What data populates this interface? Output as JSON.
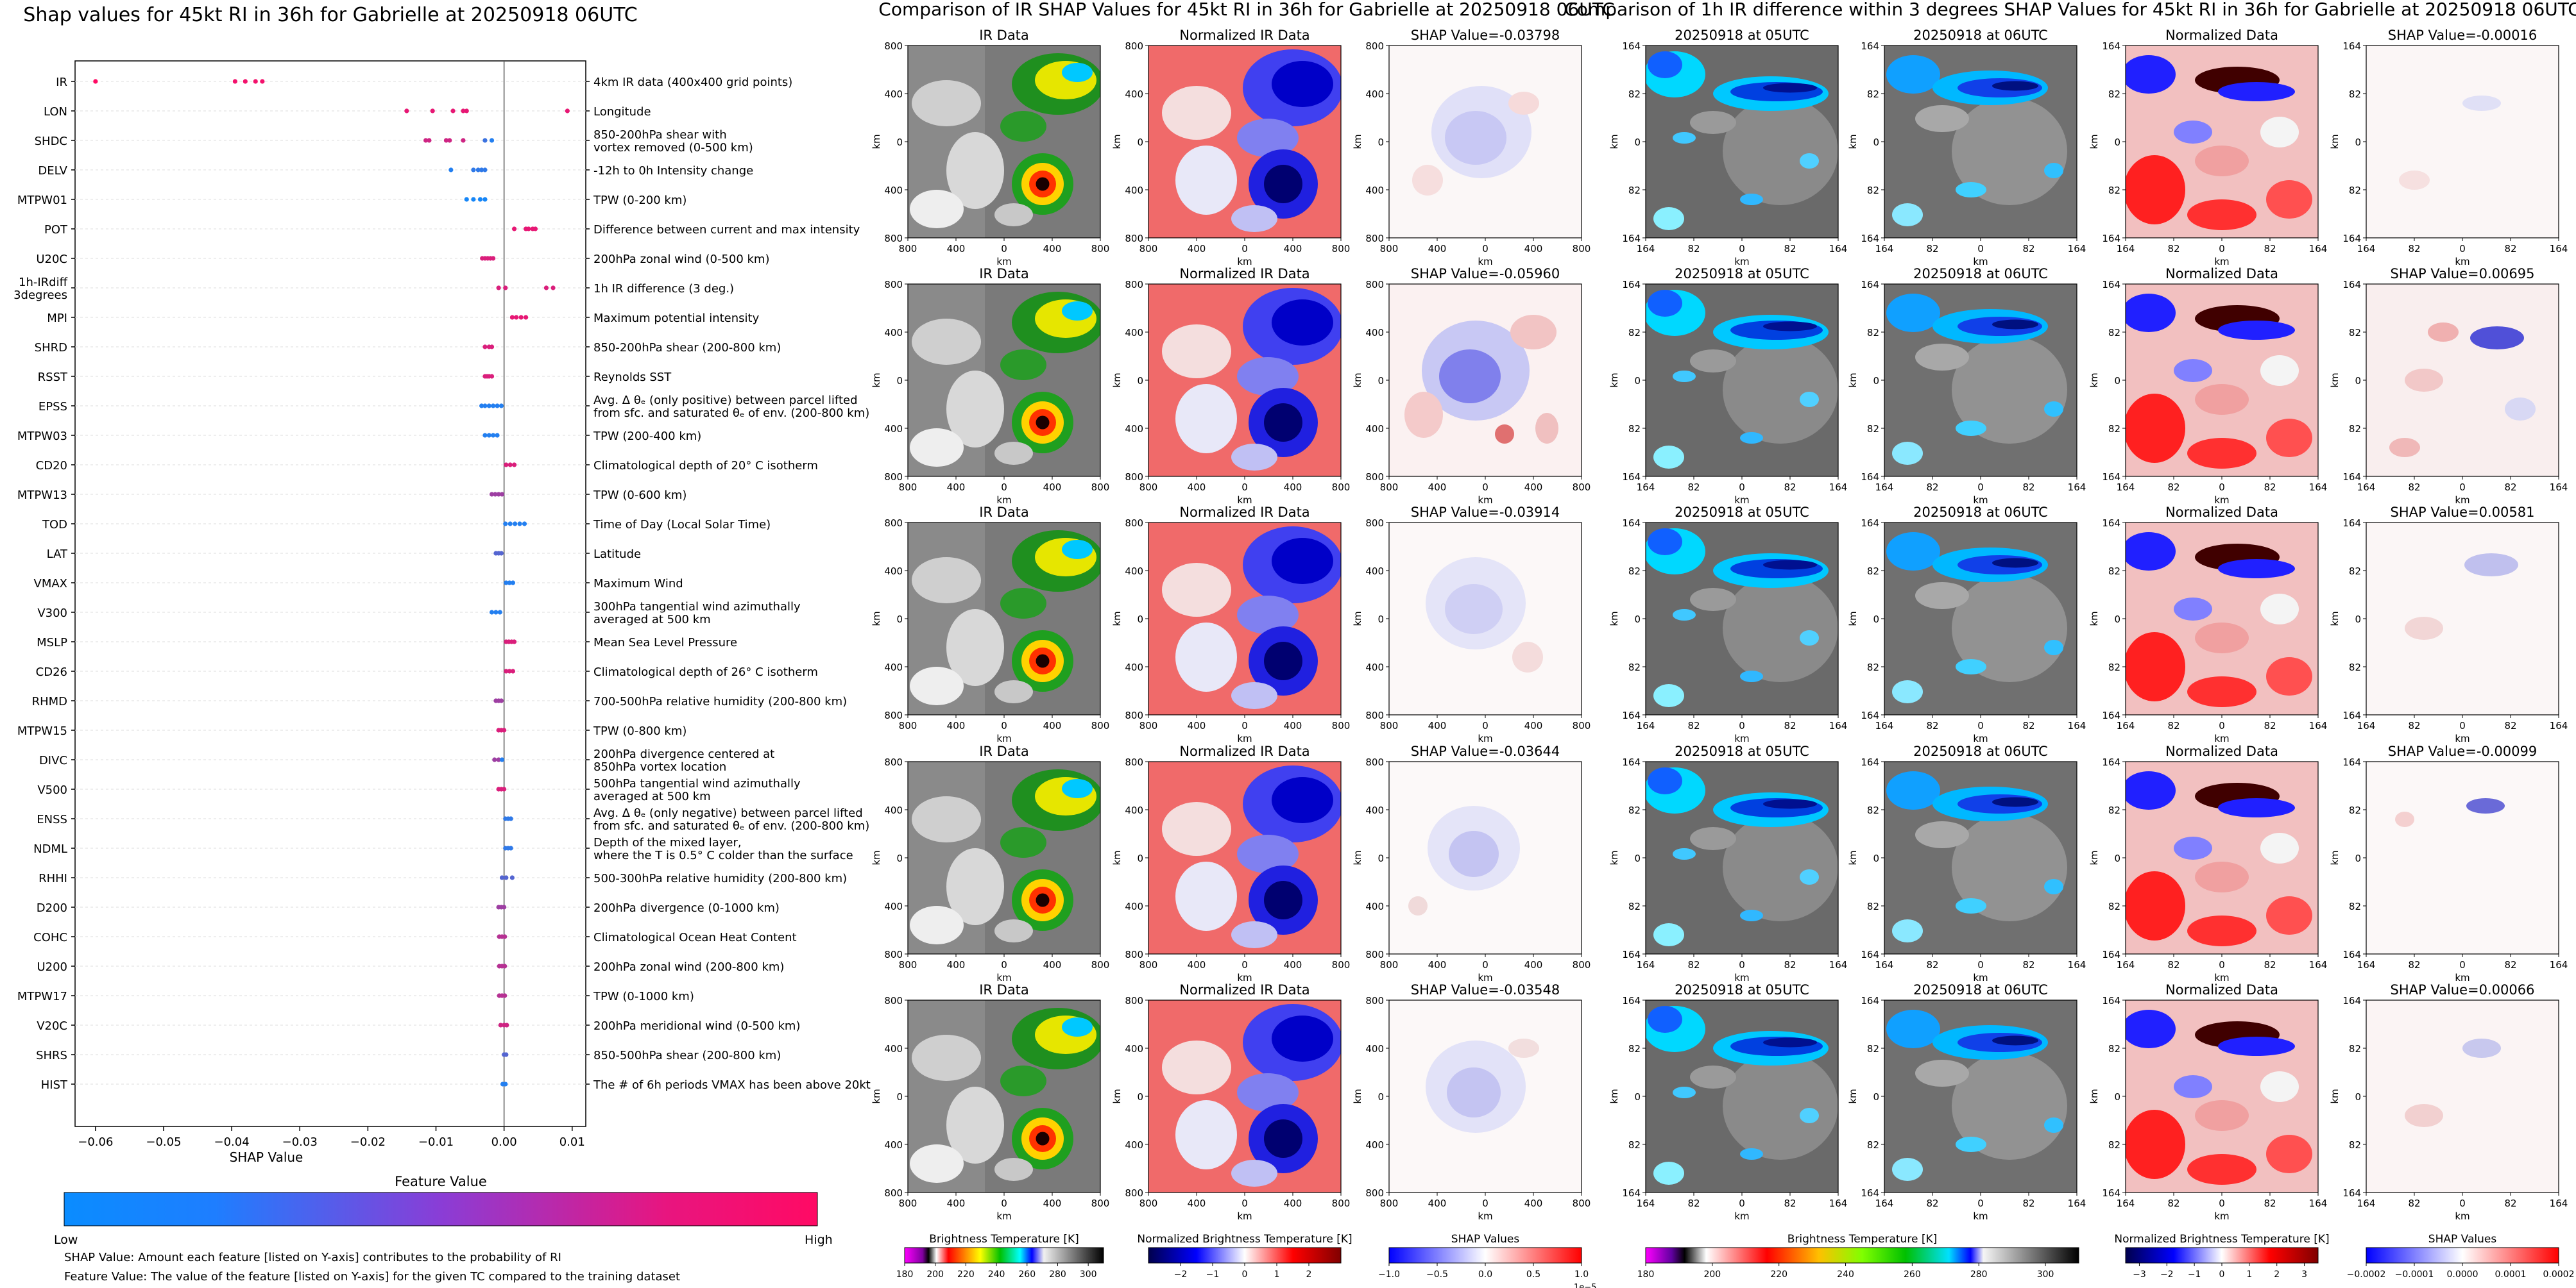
{
  "chart_data": [
    {
      "type": "scatter",
      "title": "Shap values for 45kt RI in 36h for Gabrielle at 20250918 06UTC",
      "xlabel": "SHAP Value",
      "xlim": [
        -0.063,
        0.012
      ],
      "xticks": [
        -0.06,
        -0.05,
        -0.04,
        -0.03,
        -0.02,
        -0.01,
        0.0,
        0.01
      ],
      "xtick_labels": [
        "−0.06",
        "−0.05",
        "−0.04",
        "−0.03",
        "−0.02",
        "−0.01",
        "0.00",
        "0.01"
      ],
      "colorbar": {
        "title": "Feature Value",
        "low_label": "Low",
        "high_label": "High",
        "low_color": "#0a8cff",
        "high_color": "#ff0a64"
      },
      "footnotes": [
        "SHAP Value: Amount each feature [listed on Y-axis] contributes to the probability of RI",
        "Feature Value: The value of the feature [listed on Y-axis] for the given TC compared to the training dataset"
      ],
      "features": [
        {
          "name": "IR",
          "desc": [
            "4km IR data (400x400 grid points)"
          ],
          "points": [
            [
              -0.06,
              1
            ],
            [
              -0.0395,
              0.95
            ],
            [
              -0.038,
              0.95
            ],
            [
              -0.0365,
              0.95
            ],
            [
              -0.0355,
              0.95
            ]
          ]
        },
        {
          "name": "LON",
          "desc": [
            "Longitude"
          ],
          "points": [
            [
              -0.0143,
              0.9
            ],
            [
              -0.0105,
              0.9
            ],
            [
              -0.0075,
              0.9
            ],
            [
              -0.006,
              0.9
            ],
            [
              -0.0055,
              0.9
            ],
            [
              0.0093,
              0.9
            ]
          ]
        },
        {
          "name": "SHDC",
          "desc": [
            "850-200hPa shear with",
            "vortex removed (0-500 km)"
          ],
          "points": [
            [
              -0.0115,
              0.8
            ],
            [
              -0.011,
              0.8
            ],
            [
              -0.0085,
              0.8
            ],
            [
              -0.008,
              0.8
            ],
            [
              -0.006,
              0.8
            ],
            [
              -0.0028,
              0.2
            ],
            [
              -0.0018,
              0.1
            ]
          ]
        },
        {
          "name": "DELV",
          "desc": [
            "-12h to 0h Intensity change"
          ],
          "points": [
            [
              -0.0078,
              0.1
            ],
            [
              -0.0045,
              0.15
            ],
            [
              -0.0038,
              0.15
            ],
            [
              -0.0033,
              0.15
            ],
            [
              -0.0028,
              0.15
            ]
          ]
        },
        {
          "name": "MTPW01",
          "desc": [
            "TPW (0-200 km)"
          ],
          "points": [
            [
              -0.0055,
              0.05
            ],
            [
              -0.0045,
              0.05
            ],
            [
              -0.0035,
              0.05
            ],
            [
              -0.0028,
              0.05
            ]
          ]
        },
        {
          "name": "POT",
          "desc": [
            "Difference between current and max intensity"
          ],
          "points": [
            [
              0.0015,
              0.9
            ],
            [
              0.0032,
              0.9
            ],
            [
              0.0036,
              0.9
            ],
            [
              0.0042,
              0.9
            ],
            [
              0.0046,
              0.9
            ]
          ]
        },
        {
          "name": "U20C",
          "desc": [
            "200hPa zonal wind (0-500 km)"
          ],
          "points": [
            [
              -0.0032,
              0.85
            ],
            [
              -0.0028,
              0.85
            ],
            [
              -0.0024,
              0.85
            ],
            [
              -0.002,
              0.85
            ],
            [
              -0.0016,
              0.85
            ]
          ]
        },
        {
          "name": "1h-IRdiff\n3degrees",
          "desc": [
            "1h IR difference (3 deg.)"
          ],
          "points": [
            [
              -0.0008,
              0.85
            ],
            [
              0.0002,
              0.85
            ],
            [
              0.0062,
              0.85
            ],
            [
              0.0072,
              0.85
            ]
          ]
        },
        {
          "name": "MPI",
          "desc": [
            "Maximum potential intensity"
          ],
          "points": [
            [
              0.0012,
              0.9
            ],
            [
              0.0018,
              0.9
            ],
            [
              0.0025,
              0.9
            ],
            [
              0.0032,
              0.9
            ]
          ]
        },
        {
          "name": "SHRD",
          "desc": [
            "850-200hPa shear (200-800 km)"
          ],
          "points": [
            [
              -0.0028,
              0.85
            ],
            [
              -0.0022,
              0.85
            ],
            [
              -0.0018,
              0.85
            ]
          ]
        },
        {
          "name": "RSST",
          "desc": [
            "Reynolds SST"
          ],
          "points": [
            [
              -0.0028,
              0.85
            ],
            [
              -0.0025,
              0.85
            ],
            [
              -0.0022,
              0.85
            ],
            [
              -0.0018,
              0.85
            ]
          ]
        },
        {
          "name": "EPSS",
          "desc": [
            "Avg. Δ θₑ (only positive) between parcel lifted",
            "from sfc. and saturated θₑ of env. (200-800 km)"
          ],
          "points": [
            [
              -0.0033,
              0.1
            ],
            [
              -0.0028,
              0.1
            ],
            [
              -0.0022,
              0.1
            ],
            [
              -0.0016,
              0.1
            ],
            [
              -0.001,
              0.1
            ],
            [
              -0.0004,
              0.1
            ]
          ]
        },
        {
          "name": "MTPW03",
          "desc": [
            "TPW (200-400 km)"
          ],
          "points": [
            [
              -0.0028,
              0.1
            ],
            [
              -0.0022,
              0.1
            ],
            [
              -0.0016,
              0.1
            ],
            [
              -0.001,
              0.1
            ]
          ]
        },
        {
          "name": "CD20",
          "desc": [
            "Climatological depth of 20° C isotherm"
          ],
          "points": [
            [
              0.0003,
              0.85
            ],
            [
              0.0009,
              0.85
            ],
            [
              0.0015,
              0.85
            ]
          ]
        },
        {
          "name": "MTPW13",
          "desc": [
            "TPW (0-600 km)"
          ],
          "points": [
            [
              -0.0018,
              0.6
            ],
            [
              -0.0013,
              0.6
            ],
            [
              -0.0008,
              0.6
            ],
            [
              -0.0003,
              0.6
            ]
          ]
        },
        {
          "name": "TOD",
          "desc": [
            "Time of Day (Local Solar Time)"
          ],
          "points": [
            [
              0.0002,
              0.1
            ],
            [
              0.0009,
              0.1
            ],
            [
              0.0016,
              0.1
            ],
            [
              0.0023,
              0.1
            ],
            [
              0.003,
              0.1
            ]
          ]
        },
        {
          "name": "LAT",
          "desc": [
            "Latitude"
          ],
          "points": [
            [
              -0.0012,
              0.3
            ],
            [
              -0.0008,
              0.3
            ],
            [
              -0.0004,
              0.3
            ]
          ]
        },
        {
          "name": "VMAX",
          "desc": [
            "Maximum Wind"
          ],
          "points": [
            [
              0.0003,
              0.1
            ],
            [
              0.0008,
              0.1
            ],
            [
              0.0013,
              0.1
            ]
          ]
        },
        {
          "name": "V300",
          "desc": [
            "300hPa tangential wind azimuthally",
            "averaged at 500 km"
          ],
          "points": [
            [
              -0.0018,
              0.1
            ],
            [
              -0.0012,
              0.1
            ],
            [
              -0.0006,
              0.1
            ]
          ]
        },
        {
          "name": "MSLP",
          "desc": [
            "Mean Sea Level Pressure"
          ],
          "points": [
            [
              0.0003,
              0.85
            ],
            [
              0.0007,
              0.85
            ],
            [
              0.0011,
              0.85
            ],
            [
              0.0015,
              0.85
            ]
          ]
        },
        {
          "name": "CD26",
          "desc": [
            "Climatological depth of 26° C isotherm"
          ],
          "points": [
            [
              0.0003,
              0.85
            ],
            [
              0.0008,
              0.85
            ],
            [
              0.0013,
              0.85
            ]
          ]
        },
        {
          "name": "RHMD",
          "desc": [
            "700-500hPa relative humidity (200-800 km)"
          ],
          "points": [
            [
              -0.0012,
              0.6
            ],
            [
              -0.0008,
              0.6
            ],
            [
              -0.0004,
              0.6
            ]
          ]
        },
        {
          "name": "MTPW15",
          "desc": [
            "TPW (0-800 km)"
          ],
          "points": [
            [
              -0.0008,
              0.85
            ],
            [
              -0.0004,
              0.85
            ],
            [
              0.0,
              0.85
            ]
          ]
        },
        {
          "name": "DIVC",
          "desc": [
            "200hPa divergence centered at",
            "850hPa vortex location"
          ],
          "points": [
            [
              -0.0014,
              0.6
            ],
            [
              -0.0008,
              0.6
            ],
            [
              -0.0003,
              0.1
            ]
          ]
        },
        {
          "name": "V500",
          "desc": [
            "500hPa tangential wind azimuthally",
            "averaged at 500 km"
          ],
          "points": [
            [
              -0.0008,
              0.85
            ],
            [
              -0.0004,
              0.85
            ],
            [
              0.0,
              0.85
            ]
          ]
        },
        {
          "name": "ENSS",
          "desc": [
            "Avg. Δ θₑ (only negative) between parcel lifted",
            "from sfc. and saturated θₑ of env. (200-800 km)"
          ],
          "points": [
            [
              0.0002,
              0.15
            ],
            [
              0.0006,
              0.15
            ],
            [
              0.001,
              0.15
            ]
          ]
        },
        {
          "name": "NDML",
          "desc": [
            "Depth of the mixed layer,",
            "where the T is 0.5° C colder than the surface"
          ],
          "points": [
            [
              0.0002,
              0.15
            ],
            [
              0.0006,
              0.15
            ],
            [
              0.001,
              0.15
            ]
          ]
        },
        {
          "name": "RHHI",
          "desc": [
            "500-300hPa relative humidity (200-800 km)"
          ],
          "points": [
            [
              -0.0003,
              0.3
            ],
            [
              0.0003,
              0.3
            ],
            [
              0.0012,
              0.3
            ]
          ]
        },
        {
          "name": "D200",
          "desc": [
            "200hPa divergence (0-1000 km)"
          ],
          "points": [
            [
              -0.0008,
              0.6
            ],
            [
              -0.0004,
              0.6
            ],
            [
              0.0,
              0.6
            ]
          ]
        },
        {
          "name": "COHC",
          "desc": [
            "Climatological Ocean Heat Content"
          ],
          "points": [
            [
              -0.0007,
              0.7
            ],
            [
              -0.0003,
              0.7
            ],
            [
              0.0001,
              0.7
            ]
          ]
        },
        {
          "name": "U200",
          "desc": [
            "200hPa zonal wind (200-800 km)"
          ],
          "points": [
            [
              -0.0007,
              0.7
            ],
            [
              -0.0003,
              0.7
            ],
            [
              0.0001,
              0.7
            ]
          ]
        },
        {
          "name": "MTPW17",
          "desc": [
            "TPW (0-1000 km)"
          ],
          "points": [
            [
              -0.0007,
              0.7
            ],
            [
              -0.0003,
              0.7
            ],
            [
              0.0001,
              0.7
            ]
          ]
        },
        {
          "name": "V20C",
          "desc": [
            "200hPa meridional wind (0-500 km)"
          ],
          "points": [
            [
              -0.0005,
              0.8
            ],
            [
              0.0,
              0.8
            ],
            [
              0.0004,
              0.8
            ]
          ]
        },
        {
          "name": "SHRS",
          "desc": [
            "850-500hPa shear (200-800 km)"
          ],
          "points": [
            [
              0.0,
              0.3
            ],
            [
              0.0003,
              0.3
            ]
          ]
        },
        {
          "name": "HIST",
          "desc": [
            "The # of 6h periods VMAX has been above 20kt"
          ],
          "points": [
            [
              -0.0002,
              0.1
            ],
            [
              0.0002,
              0.1
            ]
          ]
        }
      ]
    },
    {
      "type": "heatmap",
      "title": "Comparison of IR SHAP Values for 45kt RI in 36h for Gabrielle at 20250918 06UTC",
      "panel_titles": [
        "IR Data",
        "Normalized IR Data"
      ],
      "shap_titles": [
        "SHAP Value=-0.03798",
        "SHAP Value=-0.05960",
        "SHAP Value=-0.03914",
        "SHAP Value=-0.03644",
        "SHAP Value=-0.03548"
      ],
      "xlabel": "km",
      "ylabel": "km",
      "ticks": [
        "800",
        "400",
        "0",
        "400",
        "800"
      ],
      "colorbars": [
        {
          "title": "Brightness Temperature [K]",
          "ticks": [
            "180",
            "200",
            "220",
            "240",
            "260",
            "280",
            "300"
          ],
          "range": [
            180,
            310
          ]
        },
        {
          "title": "Normalized Brightness Temperature [K]",
          "ticks": [
            "−2",
            "−1",
            "0",
            "1",
            "2"
          ],
          "range": [
            -3,
            3
          ]
        },
        {
          "title": "SHAP Values",
          "ticks": [
            "−1.0",
            "−0.5",
            "0.0",
            "0.5",
            "1.0"
          ],
          "range": [
            -1,
            1
          ],
          "scale": "1e−5"
        }
      ]
    },
    {
      "type": "heatmap",
      "title": "Comparison of 1h IR difference within 3 degrees SHAP Values for 45kt RI in 36h for Gabrielle at 20250918 06UTC",
      "panel_titles": [
        "20250918 at 05UTC",
        "20250918 at 06UTC",
        "Normalized Data"
      ],
      "shap_titles": [
        "SHAP Value=-0.00016",
        "SHAP Value=0.00695",
        "SHAP Value=0.00581",
        "SHAP Value=-0.00099",
        "SHAP Value=0.00066"
      ],
      "xlabel": "km",
      "ylabel": "km",
      "ticks": [
        "164",
        "82",
        "0",
        "82",
        "164"
      ],
      "colorbars": [
        {
          "title": "Brightness Temperature [K]",
          "ticks": [
            "180",
            "200",
            "220",
            "240",
            "260",
            "280",
            "300"
          ],
          "range": [
            180,
            310
          ]
        },
        {
          "title": "Normalized Brightness Temperature [K]",
          "ticks": [
            "−3",
            "−2",
            "−1",
            "0",
            "1",
            "2",
            "3"
          ],
          "range": [
            -3.5,
            3.5
          ]
        },
        {
          "title": "SHAP Values",
          "ticks": [
            "−0.0002",
            "−0.0001",
            "0.0000",
            "0.0001",
            "0.0002"
          ],
          "range": [
            -0.0002,
            0.0002
          ]
        }
      ]
    }
  ]
}
